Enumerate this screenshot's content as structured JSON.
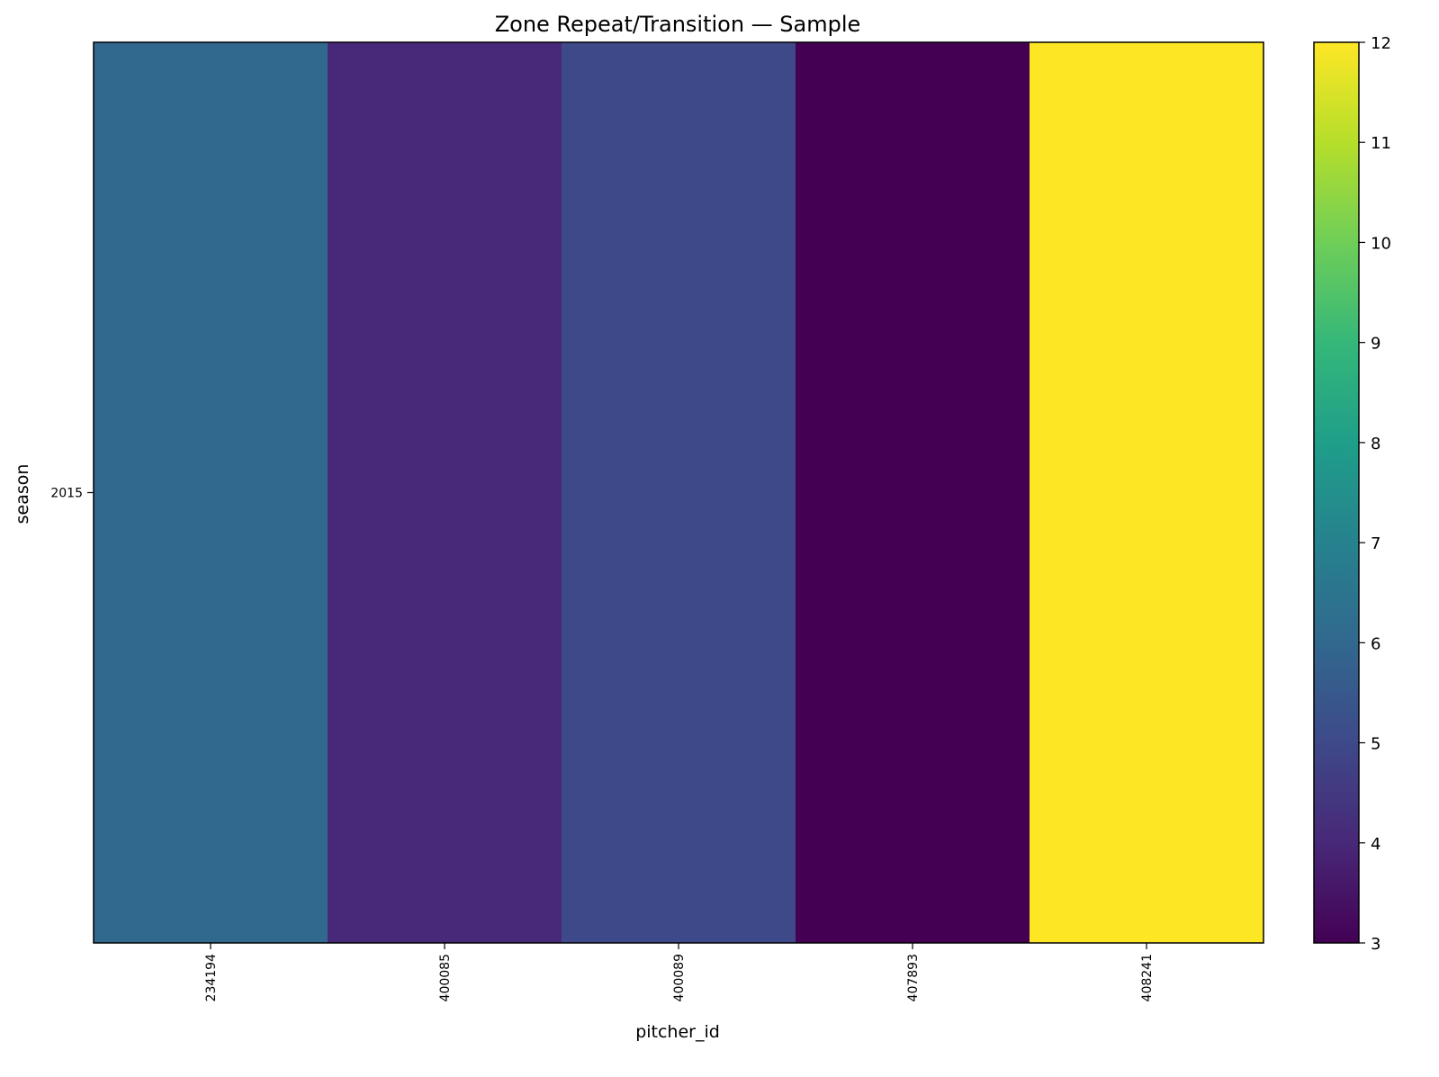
{
  "chart_data": {
    "type": "heatmap",
    "title": "Zone Repeat/Transition — Sample",
    "xlabel": "pitcher_id",
    "ylabel": "season",
    "x_categories": [
      "234194",
      "400085",
      "400089",
      "407893",
      "408241"
    ],
    "y_categories": [
      "2015"
    ],
    "values": [
      [
        6,
        4,
        5,
        3,
        12
      ]
    ],
    "colorbar": {
      "colormap": "viridis",
      "range": [
        3,
        12
      ],
      "ticks": [
        "3",
        "4",
        "5",
        "6",
        "7",
        "8",
        "9",
        "10",
        "11",
        "12"
      ]
    },
    "grid": false,
    "legend": "none"
  }
}
